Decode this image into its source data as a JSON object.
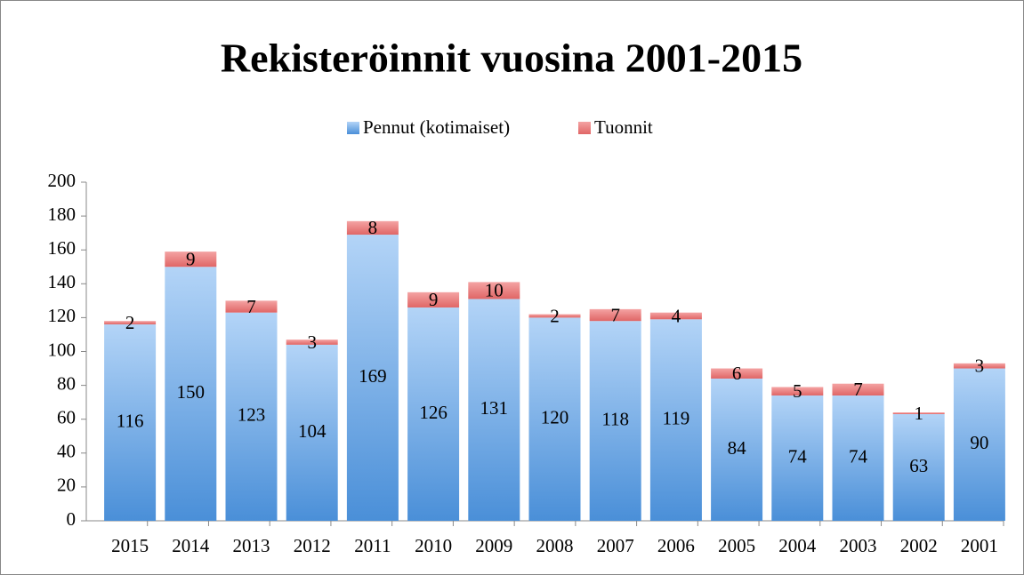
{
  "chart_data": {
    "type": "stacked_bar",
    "title": "Rekisteröinnit vuosina 2001-2015",
    "categories": [
      "2015",
      "2014",
      "2013",
      "2012",
      "2011",
      "2010",
      "2009",
      "2008",
      "2007",
      "2006",
      "2005",
      "2004",
      "2003",
      "2002",
      "2001"
    ],
    "series": [
      {
        "name": "Pennut (kotimaiset)",
        "color": "#4a8fd8",
        "values": [
          116,
          150,
          123,
          104,
          169,
          126,
          131,
          120,
          118,
          119,
          84,
          74,
          74,
          63,
          90
        ]
      },
      {
        "name": "Tuonnit",
        "color": "#e06666",
        "values": [
          2,
          9,
          7,
          3,
          8,
          9,
          10,
          2,
          7,
          4,
          6,
          5,
          7,
          1,
          3
        ]
      }
    ],
    "ylim": [
      0,
      200
    ],
    "yticks": [
      0,
      20,
      40,
      60,
      80,
      100,
      120,
      140,
      160,
      180,
      200
    ],
    "legend": "top"
  }
}
